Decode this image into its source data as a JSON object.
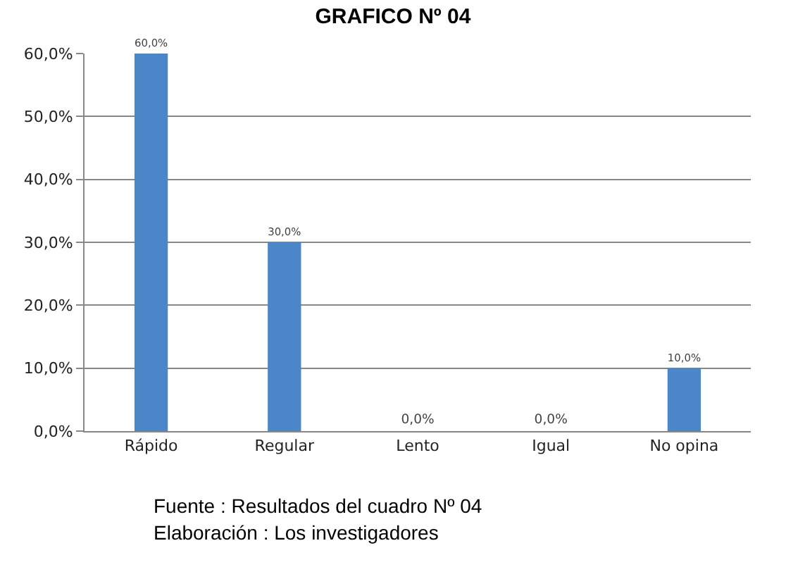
{
  "chart_data": {
    "type": "bar",
    "title": "GRAFICO Nº 04",
    "categories": [
      "Rápido",
      "Regular",
      "Lento",
      "Igual",
      "No opina"
    ],
    "values": [
      60,
      30,
      0,
      0,
      10
    ],
    "value_labels": [
      "60,0%",
      "30,0%",
      "0,0%",
      "0,0%",
      "10,0%"
    ],
    "color": "#4a86c8",
    "ylim": [
      0,
      60
    ],
    "yticks": [
      {
        "value": 0,
        "label": "0,0%"
      },
      {
        "value": 10,
        "label": "10,0%"
      },
      {
        "value": 20,
        "label": "20,0%"
      },
      {
        "value": 30,
        "label": "30,0%"
      },
      {
        "value": 40,
        "label": "40,0%"
      },
      {
        "value": 50,
        "label": "50,0%"
      },
      {
        "value": 60,
        "label": "60,0%"
      }
    ],
    "grid": "y",
    "annotations": [
      "Fuente : Resultados del cuadro Nº 04",
      "Elaboración : Los investigadores"
    ]
  }
}
